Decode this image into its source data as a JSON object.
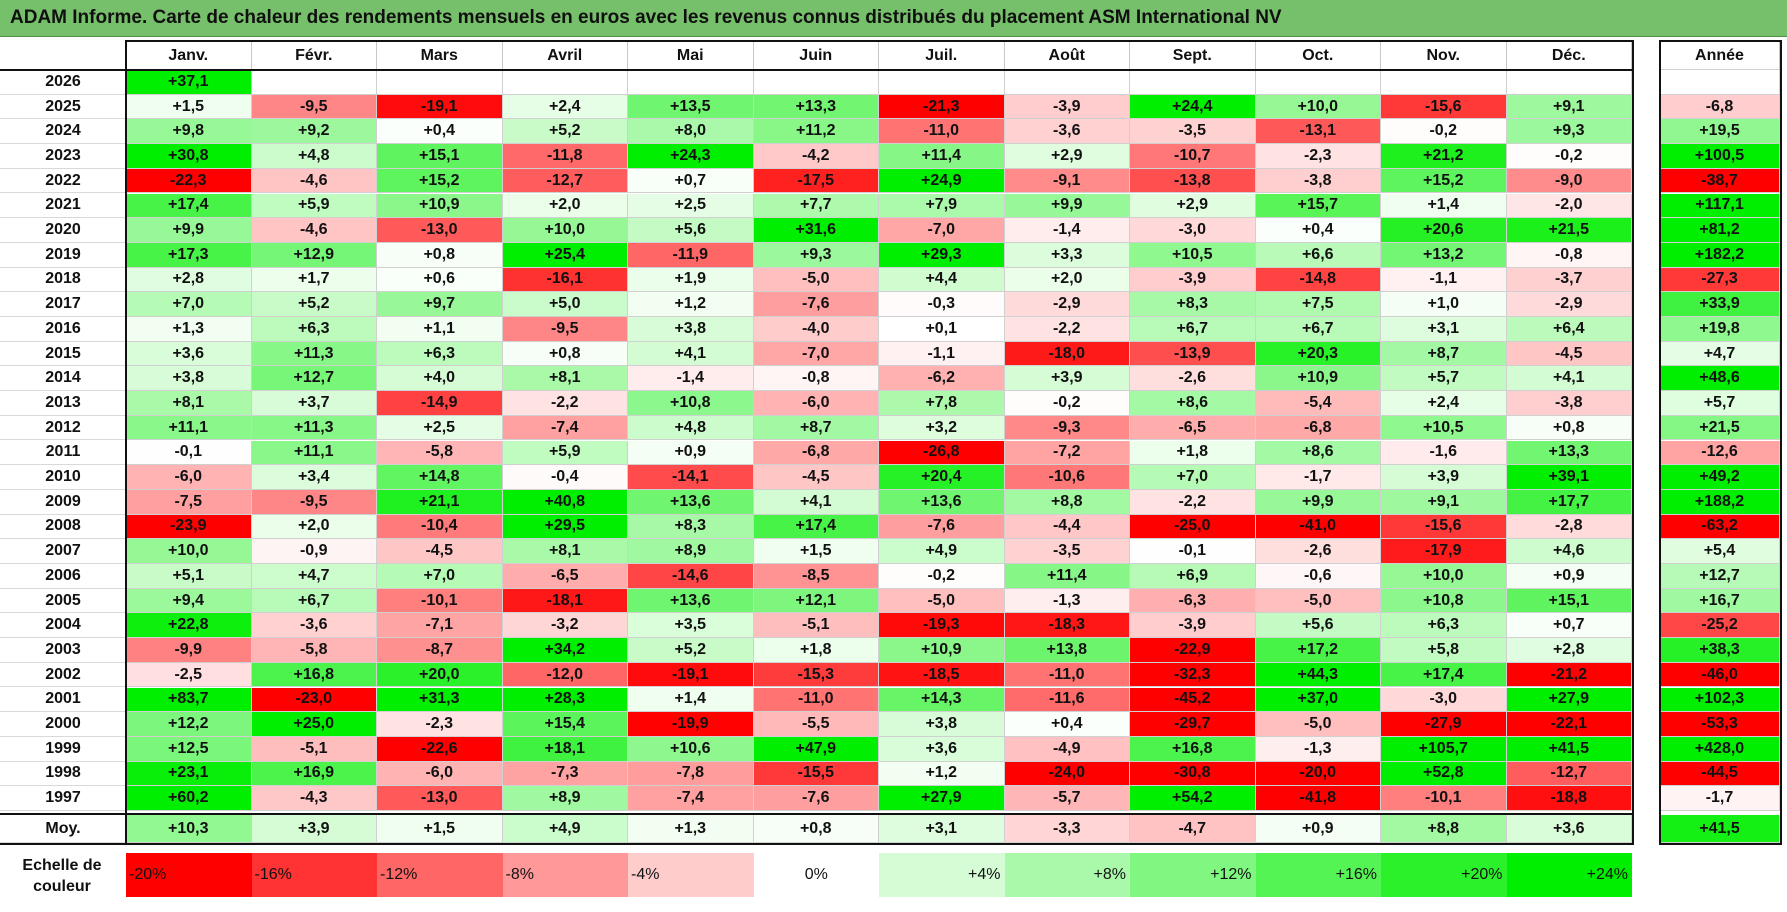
{
  "title": "ADAM Informe. Carte de chaleur des rendements mensuels en euros avec les revenus connus distribués du placement ASM International NV",
  "months": [
    "Janv.",
    "Févr.",
    "Mars",
    "Avril",
    "Mai",
    "Juin",
    "Juil.",
    "Août",
    "Sept.",
    "Oct.",
    "Nov.",
    "Déc."
  ],
  "annual_header": "Année",
  "avg_label": "Moy.",
  "scale_label": "Echelle de couleur",
  "colors": {
    "red": "#ff0000",
    "green": "#00ee00",
    "white": "#ffffff",
    "title_bg": "#77c06b"
  },
  "chart_data": {
    "type": "heatmap",
    "title": "ADAM Informe. Carte de chaleur des rendements mensuels en euros avec les revenus connus distribués du placement ASM International NV",
    "x_categories": [
      "Janv.",
      "Févr.",
      "Mars",
      "Avril",
      "Mai",
      "Juin",
      "Juil.",
      "Août",
      "Sept.",
      "Oct.",
      "Nov.",
      "Déc."
    ],
    "rows": [
      {
        "year": "2026",
        "values": [
          "+37,1",
          "",
          "",
          "",
          "",
          "",
          "",
          "",
          "",
          "",
          "",
          ""
        ],
        "annual": ""
      },
      {
        "year": "2025",
        "values": [
          "+1,5",
          "-9,5",
          "-19,1",
          "+2,4",
          "+13,5",
          "+13,3",
          "-21,3",
          "-3,9",
          "+24,4",
          "+10,0",
          "-15,6",
          "+9,1"
        ],
        "annual": "-6,8"
      },
      {
        "year": "2024",
        "values": [
          "+9,8",
          "+9,2",
          "+0,4",
          "+5,2",
          "+8,0",
          "+11,2",
          "-11,0",
          "-3,6",
          "-3,5",
          "-13,1",
          "-0,2",
          "+9,3"
        ],
        "annual": "+19,5"
      },
      {
        "year": "2023",
        "values": [
          "+30,8",
          "+4,8",
          "+15,1",
          "-11,8",
          "+24,3",
          "-4,2",
          "+11,4",
          "+2,9",
          "-10,7",
          "-2,3",
          "+21,2",
          "-0,2"
        ],
        "annual": "+100,5"
      },
      {
        "year": "2022",
        "values": [
          "-22,3",
          "-4,6",
          "+15,2",
          "-12,7",
          "+0,7",
          "-17,5",
          "+24,9",
          "-9,1",
          "-13,8",
          "-3,8",
          "+15,2",
          "-9,0"
        ],
        "annual": "-38,7"
      },
      {
        "year": "2021",
        "values": [
          "+17,4",
          "+5,9",
          "+10,9",
          "+2,0",
          "+2,5",
          "+7,7",
          "+7,9",
          "+9,9",
          "+2,9",
          "+15,7",
          "+1,4",
          "-2,0"
        ],
        "annual": "+117,1"
      },
      {
        "year": "2020",
        "values": [
          "+9,9",
          "-4,6",
          "-13,0",
          "+10,0",
          "+5,6",
          "+31,6",
          "-7,0",
          "-1,4",
          "-3,0",
          "+0,4",
          "+20,6",
          "+21,5"
        ],
        "annual": "+81,2"
      },
      {
        "year": "2019",
        "values": [
          "+17,3",
          "+12,9",
          "+0,8",
          "+25,4",
          "-11,9",
          "+9,3",
          "+29,3",
          "+3,3",
          "+10,5",
          "+6,6",
          "+13,2",
          "-0,8"
        ],
        "annual": "+182,2"
      },
      {
        "year": "2018",
        "values": [
          "+2,8",
          "+1,7",
          "+0,6",
          "-16,1",
          "+1,9",
          "-5,0",
          "+4,4",
          "+2,0",
          "-3,9",
          "-14,8",
          "-1,1",
          "-3,7"
        ],
        "annual": "-27,3"
      },
      {
        "year": "2017",
        "values": [
          "+7,0",
          "+5,2",
          "+9,7",
          "+5,0",
          "+1,2",
          "-7,6",
          "-0,3",
          "-2,9",
          "+8,3",
          "+7,5",
          "+1,0",
          "-2,9"
        ],
        "annual": "+33,9"
      },
      {
        "year": "2016",
        "values": [
          "+1,3",
          "+6,3",
          "+1,1",
          "-9,5",
          "+3,8",
          "-4,0",
          "+0,1",
          "-2,2",
          "+6,7",
          "+6,7",
          "+3,1",
          "+6,4"
        ],
        "annual": "+19,8"
      },
      {
        "year": "2015",
        "values": [
          "+3,6",
          "+11,3",
          "+6,3",
          "+0,8",
          "+4,1",
          "-7,0",
          "-1,1",
          "-18,0",
          "-13,9",
          "+20,3",
          "+8,7",
          "-4,5"
        ],
        "annual": "+4,7"
      },
      {
        "year": "2014",
        "values": [
          "+3,8",
          "+12,7",
          "+4,0",
          "+8,1",
          "-1,4",
          "-0,8",
          "-6,2",
          "+3,9",
          "-2,6",
          "+10,9",
          "+5,7",
          "+4,1"
        ],
        "annual": "+48,6"
      },
      {
        "year": "2013",
        "values": [
          "+8,1",
          "+3,7",
          "-14,9",
          "-2,2",
          "+10,8",
          "-6,0",
          "+7,8",
          "-0,2",
          "+8,6",
          "-5,4",
          "+2,4",
          "-3,8"
        ],
        "annual": "+5,7"
      },
      {
        "year": "2012",
        "values": [
          "+11,1",
          "+11,3",
          "+2,5",
          "-7,4",
          "+4,8",
          "+8,7",
          "+3,2",
          "-9,3",
          "-6,5",
          "-6,8",
          "+10,5",
          "+0,8"
        ],
        "annual": "+21,5"
      },
      {
        "year": "2011",
        "values": [
          "-0,1",
          "+11,1",
          "-5,8",
          "+5,9",
          "+0,9",
          "-6,8",
          "-26,8",
          "-7,2",
          "+1,8",
          "+8,6",
          "-1,6",
          "+13,3"
        ],
        "annual": "-12,6"
      },
      {
        "year": "2010",
        "values": [
          "-6,0",
          "+3,4",
          "+14,8",
          "-0,4",
          "-14,1",
          "-4,5",
          "+20,4",
          "-10,6",
          "+7,0",
          "-1,7",
          "+3,9",
          "+39,1"
        ],
        "annual": "+49,2"
      },
      {
        "year": "2009",
        "values": [
          "-7,5",
          "-9,5",
          "+21,1",
          "+40,8",
          "+13,6",
          "+4,1",
          "+13,6",
          "+8,8",
          "-2,2",
          "+9,9",
          "+9,1",
          "+17,7"
        ],
        "annual": "+188,2"
      },
      {
        "year": "2008",
        "values": [
          "-23,9",
          "+2,0",
          "-10,4",
          "+29,5",
          "+8,3",
          "+17,4",
          "-7,6",
          "-4,4",
          "-25,0",
          "-41,0",
          "-15,6",
          "-2,8"
        ],
        "annual": "-63,2"
      },
      {
        "year": "2007",
        "values": [
          "+10,0",
          "-0,9",
          "-4,5",
          "+8,1",
          "+8,9",
          "+1,5",
          "+4,9",
          "-3,5",
          "-0,1",
          "-2,6",
          "-17,9",
          "+4,6"
        ],
        "annual": "+5,4"
      },
      {
        "year": "2006",
        "values": [
          "+5,1",
          "+4,7",
          "+7,0",
          "-6,5",
          "-14,6",
          "-8,5",
          "-0,2",
          "+11,4",
          "+6,9",
          "-0,6",
          "+10,0",
          "+0,9"
        ],
        "annual": "+12,7"
      },
      {
        "year": "2005",
        "values": [
          "+9,4",
          "+6,7",
          "-10,1",
          "-18,1",
          "+13,6",
          "+12,1",
          "-5,0",
          "-1,3",
          "-6,3",
          "-5,0",
          "+10,8",
          "+15,1"
        ],
        "annual": "+16,7"
      },
      {
        "year": "2004",
        "values": [
          "+22,8",
          "-3,6",
          "-7,1",
          "-3,2",
          "+3,5",
          "-5,1",
          "-19,3",
          "-18,3",
          "-3,9",
          "+5,6",
          "+6,3",
          "+0,7"
        ],
        "annual": "-25,2"
      },
      {
        "year": "2003",
        "values": [
          "-9,9",
          "-5,8",
          "-8,7",
          "+34,2",
          "+5,2",
          "+1,8",
          "+10,9",
          "+13,8",
          "-22,9",
          "+17,2",
          "+5,8",
          "+2,8"
        ],
        "annual": "+38,3"
      },
      {
        "year": "2002",
        "values": [
          "-2,5",
          "+16,8",
          "+20,0",
          "-12,0",
          "-19,1",
          "-15,3",
          "-18,5",
          "-11,0",
          "-32,3",
          "+44,3",
          "+17,4",
          "-21,2"
        ],
        "annual": "-46,0"
      },
      {
        "year": "2001",
        "values": [
          "+83,7",
          "-23,0",
          "+31,3",
          "+28,3",
          "+1,4",
          "-11,0",
          "+14,3",
          "-11,6",
          "-45,2",
          "+37,0",
          "-3,0",
          "+27,9"
        ],
        "annual": "+102,3"
      },
      {
        "year": "2000",
        "values": [
          "+12,2",
          "+25,0",
          "-2,3",
          "+15,4",
          "-19,9",
          "-5,5",
          "+3,8",
          "+0,4",
          "-29,7",
          "-5,0",
          "-27,9",
          "-22,1"
        ],
        "annual": "-53,3"
      },
      {
        "year": "1999",
        "values": [
          "+12,5",
          "-5,1",
          "-22,6",
          "+18,1",
          "+10,6",
          "+47,9",
          "+3,6",
          "-4,9",
          "+16,8",
          "-1,3",
          "+105,7",
          "+41,5"
        ],
        "annual": "+428,0"
      },
      {
        "year": "1998",
        "values": [
          "+23,1",
          "+16,9",
          "-6,0",
          "-7,3",
          "-7,8",
          "-15,5",
          "+1,2",
          "-24,0",
          "-30,8",
          "-20,0",
          "+52,8",
          "-12,7"
        ],
        "annual": "-44,5"
      },
      {
        "year": "1997",
        "values": [
          "+60,2",
          "-4,3",
          "-13,0",
          "+8,9",
          "-7,4",
          "-7,6",
          "+27,9",
          "-5,7",
          "+54,2",
          "-41,8",
          "-10,1",
          "-18,8"
        ],
        "annual": "-1,7"
      }
    ],
    "averages": {
      "values": [
        "+10,3",
        "+3,9",
        "+1,5",
        "+4,9",
        "+1,3",
        "+0,8",
        "+3,1",
        "-3,3",
        "-4,7",
        "+0,9",
        "+8,8",
        "+3,6"
      ],
      "annual": "+41,5"
    },
    "color_scale": [
      "-20%",
      "-16%",
      "-12%",
      "-8%",
      "-4%",
      "0%",
      "+4%",
      "+8%",
      "+12%",
      "+16%",
      "+20%",
      "+24%"
    ]
  }
}
